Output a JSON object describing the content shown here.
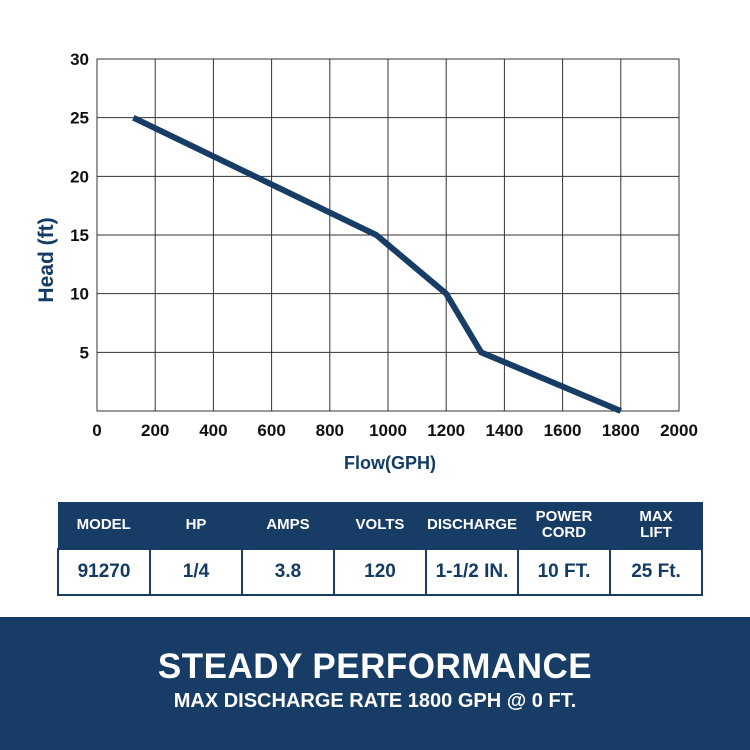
{
  "chart_data": {
    "type": "line",
    "xlabel": "Flow(GPH)",
    "ylabel": "Head (ft)",
    "xlim": [
      0,
      2000
    ],
    "ylim": [
      0,
      30
    ],
    "x_ticks": [
      "0",
      "200",
      "400",
      "600",
      "800",
      "1000",
      "1200",
      "1400",
      "1600",
      "1800",
      "2000"
    ],
    "y_ticks": [
      "5",
      "10",
      "15",
      "20",
      "25",
      "30"
    ],
    "grid": true,
    "legend": "none",
    "series": [
      {
        "x": [
          125,
          960,
          1200,
          1320,
          1800
        ],
        "y": [
          25,
          15,
          10,
          5,
          0
        ]
      }
    ],
    "line_color": "#173d66"
  },
  "specs": {
    "headers": [
      "MODEL",
      "HP",
      "AMPS",
      "VOLTS",
      "DISCHARGE",
      "POWER\nCORD",
      "MAX\nLIFT"
    ],
    "values": [
      "91270",
      "1/4",
      "3.8",
      "120",
      "1-1/2 IN.",
      "10 FT.",
      "25 Ft."
    ]
  },
  "banner": {
    "title": "STEADY PERFORMANCE",
    "subtitle": "MAX DISCHARGE RATE 1800 GPH @ 0 FT."
  },
  "colors": {
    "brand": "#173d66",
    "grid": "#333333"
  }
}
